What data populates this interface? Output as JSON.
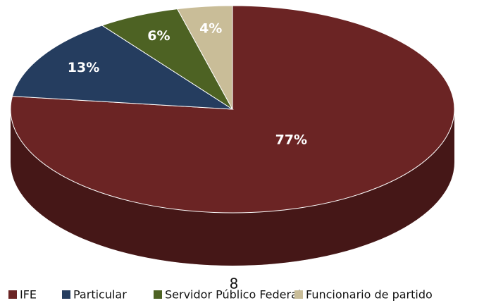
{
  "chart_data": {
    "type": "pie3d",
    "categories": [
      "IFE",
      "Particular",
      "Servidor Público Federal",
      "Funcionario de partido"
    ],
    "values": [
      77,
      13,
      6,
      4
    ],
    "value_labels": [
      "77%",
      "13%",
      "6%",
      "4%"
    ],
    "colors": [
      "#6b2424",
      "#253d5f",
      "#4d6223",
      "#c9bd98"
    ],
    "legend": "bottom"
  },
  "page_number": "8"
}
